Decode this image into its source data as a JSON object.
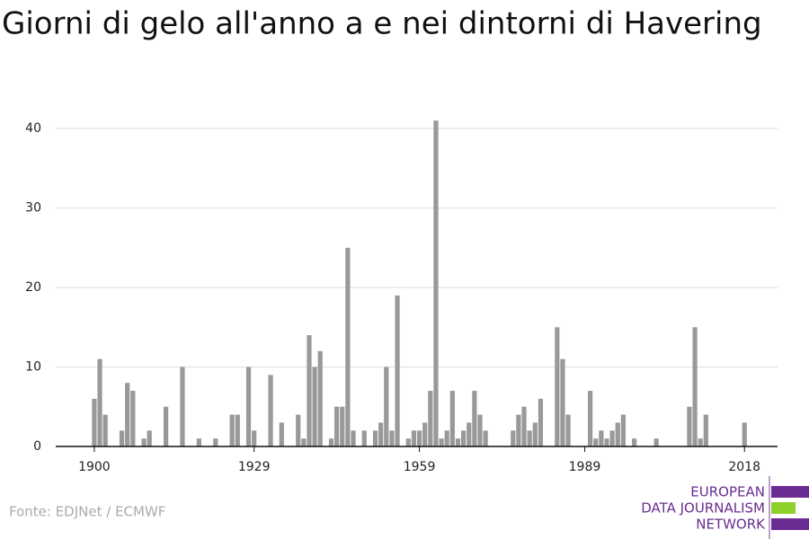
{
  "chart_data": {
    "type": "bar",
    "title": "Giorni di gelo all'anno a e nei dintorni di Havering",
    "source": "Fonte: EDJNet / ECMWF",
    "logo": [
      "EUROPEAN",
      "DATA JOURNALISM",
      "NETWORK"
    ],
    "color": "#999999",
    "x": [
      1900,
      1901,
      1902,
      1903,
      1904,
      1905,
      1906,
      1907,
      1908,
      1909,
      1910,
      1911,
      1912,
      1913,
      1914,
      1915,
      1916,
      1917,
      1918,
      1919,
      1920,
      1921,
      1922,
      1923,
      1924,
      1925,
      1926,
      1927,
      1928,
      1929,
      1930,
      1931,
      1932,
      1933,
      1934,
      1935,
      1936,
      1937,
      1938,
      1939,
      1940,
      1941,
      1942,
      1943,
      1944,
      1945,
      1946,
      1947,
      1948,
      1949,
      1950,
      1951,
      1952,
      1953,
      1954,
      1955,
      1956,
      1957,
      1958,
      1959,
      1960,
      1961,
      1962,
      1963,
      1964,
      1965,
      1966,
      1967,
      1968,
      1969,
      1970,
      1971,
      1972,
      1973,
      1974,
      1975,
      1976,
      1977,
      1978,
      1979,
      1980,
      1981,
      1982,
      1983,
      1984,
      1985,
      1986,
      1987,
      1988,
      1989,
      1990,
      1991,
      1992,
      1993,
      1994,
      1995,
      1996,
      1997,
      1998,
      1999,
      2000,
      2001,
      2002,
      2003,
      2004,
      2005,
      2006,
      2007,
      2008,
      2009,
      2010,
      2011,
      2012,
      2013,
      2014,
      2015,
      2016,
      2017,
      2018
    ],
    "values": [
      6,
      11,
      4,
      0,
      0,
      2,
      8,
      7,
      0,
      1,
      2,
      0,
      0,
      5,
      0,
      0,
      10,
      0,
      0,
      1,
      0,
      0,
      1,
      0,
      0,
      4,
      4,
      0,
      10,
      2,
      0,
      0,
      9,
      0,
      3,
      0,
      0,
      4,
      1,
      14,
      10,
      12,
      0,
      1,
      5,
      5,
      25,
      2,
      0,
      2,
      0,
      2,
      3,
      10,
      2,
      19,
      0,
      1,
      2,
      2,
      3,
      7,
      41,
      1,
      2,
      7,
      1,
      2,
      3,
      7,
      4,
      2,
      0,
      0,
      0,
      0,
      2,
      4,
      5,
      2,
      3,
      6,
      0,
      0,
      15,
      11,
      4,
      0,
      0,
      0,
      7,
      1,
      2,
      1,
      2,
      3,
      4,
      0,
      1,
      0,
      0,
      0,
      1,
      0,
      0,
      0,
      0,
      0,
      5,
      15,
      1,
      4,
      0,
      0,
      0,
      0,
      0,
      0,
      3
    ],
    "xlim": [
      1893,
      2024
    ],
    "xticks": [
      1900,
      1929,
      1959,
      1989,
      2018
    ],
    "ylim": [
      0,
      46
    ],
    "yticks": [
      0,
      10,
      20,
      30,
      40
    ],
    "grid": true
  }
}
